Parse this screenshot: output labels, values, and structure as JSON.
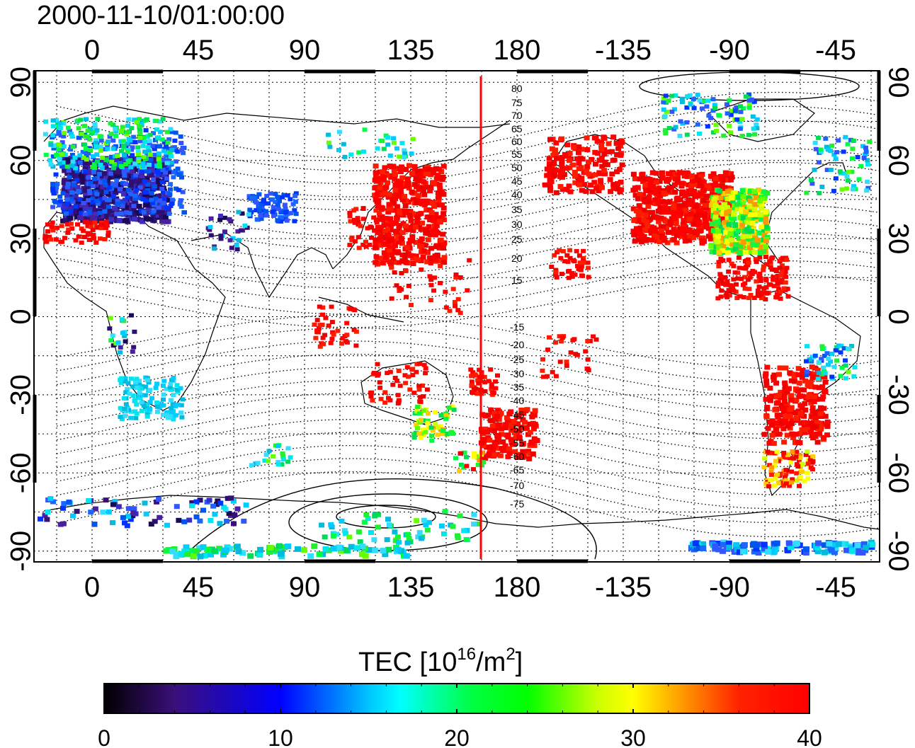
{
  "timestamp": "2000-11-10/01:00:00",
  "map": {
    "x_ticks_top": [
      "0",
      "45",
      "90",
      "135",
      "180",
      "-135",
      "-90",
      "-45"
    ],
    "x_ticks_bottom": [
      "0",
      "45",
      "90",
      "135",
      "180",
      "-135",
      "-90",
      "-45"
    ],
    "y_ticks_left": [
      "90",
      "60",
      "30",
      "0",
      "-30",
      "-60",
      "-90"
    ],
    "y_ticks_right": [
      "90",
      "60",
      "30",
      "0",
      "-30",
      "-60",
      "-90"
    ],
    "terminator_longitude": 165,
    "contour_labels_north": [
      "80",
      "75",
      "70",
      "65",
      "60",
      "55",
      "50",
      "45",
      "40",
      "35",
      "30",
      "25",
      "20",
      "15"
    ],
    "contour_labels_south": [
      "-15",
      "-20",
      "-25",
      "-30",
      "-35",
      "-40",
      "-45",
      "-50",
      "-55",
      "-60",
      "-65",
      "-70",
      "-75"
    ]
  },
  "colorbar": {
    "title": "TEC  [10",
    "title_exp": "16",
    "title_mid": "/m",
    "title_exp2": "2",
    "title_end": "]",
    "ticks": [
      "0",
      "10",
      "20",
      "30",
      "40"
    ],
    "min": 0,
    "max": 40
  },
  "colors": {
    "terminator": "#ff0000",
    "high_tec": "#ff0000"
  }
}
